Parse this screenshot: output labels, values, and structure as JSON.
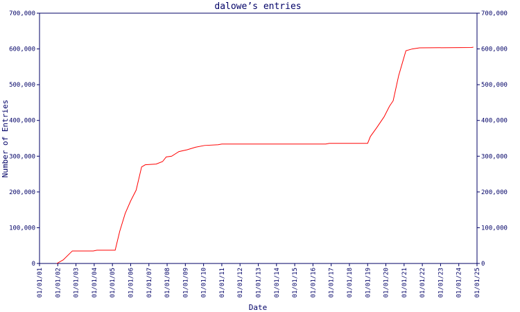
{
  "chart_data": {
    "type": "line",
    "title": "dalowe’s entries",
    "xlabel": "Date",
    "ylabel": "Number of Entries",
    "x": [
      2001.95,
      2002.3,
      2002.8,
      2003.95,
      2004.15,
      2005.15,
      2005.4,
      2005.7,
      2006.0,
      2006.3,
      2006.6,
      2006.8,
      2007.4,
      2007.75,
      2007.95,
      2008.25,
      2008.65,
      2009.1,
      2009.55,
      2010.05,
      2010.8,
      2011.0,
      2016.7,
      2016.9,
      2019.0,
      2019.15,
      2019.5,
      2019.9,
      2020.2,
      2020.4,
      2020.7,
      2020.9,
      2021.1,
      2021.45,
      2021.85,
      2024.7,
      2024.8
    ],
    "series": [
      {
        "color": "#ff0000",
        "values": [
          0,
          10000,
          35000,
          35000,
          37000,
          37000,
          90000,
          140000,
          175000,
          205000,
          270000,
          276000,
          278000,
          285000,
          298000,
          300000,
          313000,
          318000,
          325000,
          330000,
          332000,
          334000,
          334000,
          336000,
          336000,
          355000,
          380000,
          410000,
          440000,
          455000,
          525000,
          560000,
          595000,
          600000,
          603000,
          604000,
          605000
        ]
      }
    ],
    "xlim": [
      2001,
      2025
    ],
    "xticks": [
      {
        "value": 2001,
        "label": "01/01/01"
      },
      {
        "value": 2002,
        "label": "01/01/02"
      },
      {
        "value": 2003,
        "label": "01/01/03"
      },
      {
        "value": 2004,
        "label": "01/01/04"
      },
      {
        "value": 2005,
        "label": "01/01/05"
      },
      {
        "value": 2006,
        "label": "01/01/06"
      },
      {
        "value": 2007,
        "label": "01/01/07"
      },
      {
        "value": 2008,
        "label": "01/01/08"
      },
      {
        "value": 2009,
        "label": "01/01/09"
      },
      {
        "value": 2010,
        "label": "01/01/10"
      },
      {
        "value": 2011,
        "label": "01/01/11"
      },
      {
        "value": 2012,
        "label": "01/01/12"
      },
      {
        "value": 2013,
        "label": "01/01/13"
      },
      {
        "value": 2014,
        "label": "01/01/14"
      },
      {
        "value": 2015,
        "label": "01/01/15"
      },
      {
        "value": 2016,
        "label": "01/01/16"
      },
      {
        "value": 2017,
        "label": "01/01/17"
      },
      {
        "value": 2018,
        "label": "01/01/18"
      },
      {
        "value": 2019,
        "label": "01/01/19"
      },
      {
        "value": 2020,
        "label": "01/01/20"
      },
      {
        "value": 2021,
        "label": "01/01/21"
      },
      {
        "value": 2022,
        "label": "01/01/22"
      },
      {
        "value": 2023,
        "label": "01/01/23"
      },
      {
        "value": 2024,
        "label": "01/01/24"
      },
      {
        "value": 2025,
        "label": "01/01/25"
      }
    ],
    "ylim": [
      0,
      700000
    ],
    "yticks": [
      0,
      {
        "value": 100000,
        "label": "100,000"
      },
      {
        "value": 200000,
        "label": "200,000"
      },
      {
        "value": 300000,
        "label": "300,000"
      },
      {
        "value": 400000,
        "label": "400,000"
      },
      {
        "value": 500000,
        "label": "500,000"
      },
      {
        "value": 600000,
        "label": "600,000"
      },
      {
        "value": 700000,
        "label": "700,000"
      }
    ],
    "y2lim": [
      0,
      700000
    ],
    "y2ticks": [
      0,
      {
        "value": 100000,
        "label": "100,000"
      },
      {
        "value": 200000,
        "label": "200,000"
      },
      {
        "value": 300000,
        "label": "300,000"
      },
      {
        "value": 400000,
        "label": "400,000"
      },
      {
        "value": 500000,
        "label": "500,000"
      },
      {
        "value": 600000,
        "label": "600,000"
      },
      {
        "value": 700000,
        "label": "700,000"
      }
    ],
    "grid": false
  }
}
